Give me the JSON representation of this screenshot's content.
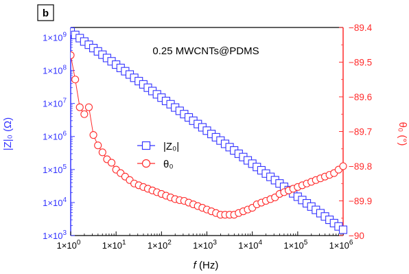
{
  "panel_label": "b",
  "colors": {
    "left": "#3333ff",
    "right": "#ff2a2a",
    "axes": "#000000"
  },
  "chart_data": {
    "type": "scatter",
    "title": "0.25 MWCNTs@PDMS",
    "xscale": "log",
    "xlim": [
      1,
      1000000
    ],
    "xlabel": {
      "italic": "f",
      "rest": " (Hz)"
    },
    "xticks": [
      {
        "v": 1,
        "m": "1×10",
        "e": "0"
      },
      {
        "v": 10,
        "m": "1×10",
        "e": "1"
      },
      {
        "v": 100,
        "m": "1×10",
        "e": "2"
      },
      {
        "v": 1000,
        "m": "1×10",
        "e": "3"
      },
      {
        "v": 10000,
        "m": "1×10",
        "e": "4"
      },
      {
        "v": 100000,
        "m": "1×10",
        "e": "5"
      },
      {
        "v": 1000000,
        "m": "1×10",
        "e": "6"
      }
    ],
    "y_left": {
      "label": "|Z|₀ (Ω)",
      "scale": "log",
      "lim": [
        1000,
        2000000000
      ],
      "ticks": [
        {
          "v": 1000,
          "m": "1×10",
          "e": "3"
        },
        {
          "v": 10000,
          "m": "1×10",
          "e": "4"
        },
        {
          "v": 100000,
          "m": "1×10",
          "e": "5"
        },
        {
          "v": 1000000,
          "m": "1×10",
          "e": "6"
        },
        {
          "v": 10000000,
          "m": "1×10",
          "e": "7"
        },
        {
          "v": 100000000,
          "m": "1×10",
          "e": "8"
        },
        {
          "v": 1000000000,
          "m": "1×10",
          "e": "9"
        }
      ]
    },
    "y_right": {
      "label": "θ₀ (°)",
      "scale": "linear",
      "lim": [
        -90,
        -89.4
      ],
      "ticks": [
        {
          "v": -89.4,
          "t": "−89.4"
        },
        {
          "v": -89.5,
          "t": "−89.5"
        },
        {
          "v": -89.6,
          "t": "−89.6"
        },
        {
          "v": -89.7,
          "t": "−89.7"
        },
        {
          "v": -89.8,
          "t": "−89.8"
        },
        {
          "v": -89.9,
          "t": "−89.9"
        },
        {
          "v": -90.0,
          "t": "−90"
        }
      ]
    },
    "legend_position": "center-left",
    "series": [
      {
        "name": "|Z₀|",
        "axis": "left",
        "marker": "square",
        "points": [
          [
            1.0,
            1500000000
          ],
          [
            1.259,
            1190000000
          ],
          [
            1.585,
            950000000
          ],
          [
            1.995,
            750000000
          ],
          [
            2.512,
            600000000
          ],
          [
            3.162,
            475000000
          ],
          [
            3.981,
            378000000
          ],
          [
            5.012,
            300000000
          ],
          [
            6.31,
            238000000
          ],
          [
            7.943,
            189000000
          ],
          [
            10.0,
            150000000
          ],
          [
            12.59,
            119000000
          ],
          [
            15.85,
            94700000
          ],
          [
            19.95,
            75300000
          ],
          [
            25.12,
            59800000
          ],
          [
            31.62,
            47500000
          ],
          [
            39.81,
            37800000
          ],
          [
            50.12,
            30000000
          ],
          [
            63.1,
            23800000
          ],
          [
            79.43,
            18900000
          ],
          [
            100.0,
            15000000
          ],
          [
            125.9,
            11900000
          ],
          [
            158.5,
            9470000
          ],
          [
            199.5,
            7530000
          ],
          [
            251.2,
            5980000
          ],
          [
            316.2,
            4750000
          ],
          [
            398.1,
            3780000
          ],
          [
            501.2,
            3000000
          ],
          [
            631.0,
            2380000
          ],
          [
            794.3,
            1890000
          ],
          [
            1000.0,
            1500000
          ],
          [
            1259,
            1190000
          ],
          [
            1585,
            947000
          ],
          [
            1995,
            753000
          ],
          [
            2512,
            598000
          ],
          [
            3162,
            475000
          ],
          [
            3981,
            378000
          ],
          [
            5012,
            300000
          ],
          [
            6310,
            238000
          ],
          [
            7943,
            189000
          ],
          [
            10000,
            150000
          ],
          [
            12590,
            119000
          ],
          [
            15850,
            94700
          ],
          [
            19950,
            75300
          ],
          [
            25120,
            59800
          ],
          [
            31620,
            47500
          ],
          [
            39810,
            37800
          ],
          [
            50120,
            30000
          ],
          [
            63100,
            23800
          ],
          [
            79430,
            18900
          ],
          [
            100000,
            15000
          ],
          [
            125900,
            11900
          ],
          [
            158500,
            9470
          ],
          [
            199500,
            7530
          ],
          [
            251200,
            5980
          ],
          [
            316200,
            4750
          ],
          [
            398100,
            3780
          ],
          [
            501200,
            3000
          ],
          [
            631000,
            2380
          ],
          [
            794300,
            1890
          ],
          [
            1000000,
            1500
          ]
        ]
      },
      {
        "name": "θ₀",
        "axis": "right",
        "marker": "circle",
        "points": [
          [
            1.0,
            -89.48
          ],
          [
            1.259,
            -89.55
          ],
          [
            1.585,
            -89.63
          ],
          [
            1.995,
            -89.65
          ],
          [
            2.512,
            -89.63
          ],
          [
            3.162,
            -89.71
          ],
          [
            3.981,
            -89.74
          ],
          [
            5.012,
            -89.76
          ],
          [
            6.31,
            -89.78
          ],
          [
            7.943,
            -89.79
          ],
          [
            10.0,
            -89.81
          ],
          [
            12.59,
            -89.82
          ],
          [
            15.85,
            -89.83
          ],
          [
            19.95,
            -89.84
          ],
          [
            25.12,
            -89.85
          ],
          [
            31.62,
            -89.855
          ],
          [
            39.81,
            -89.86
          ],
          [
            50.12,
            -89.865
          ],
          [
            63.1,
            -89.87
          ],
          [
            79.43,
            -89.875
          ],
          [
            100.0,
            -89.88
          ],
          [
            125.9,
            -89.885
          ],
          [
            158.5,
            -89.89
          ],
          [
            199.5,
            -89.895
          ],
          [
            251.2,
            -89.898
          ],
          [
            316.2,
            -89.9
          ],
          [
            398.1,
            -89.905
          ],
          [
            501.2,
            -89.91
          ],
          [
            631.0,
            -89.915
          ],
          [
            794.3,
            -89.92
          ],
          [
            1000.0,
            -89.925
          ],
          [
            1259,
            -89.93
          ],
          [
            1585,
            -89.935
          ],
          [
            1995,
            -89.94
          ],
          [
            2512,
            -89.94
          ],
          [
            3162,
            -89.94
          ],
          [
            3981,
            -89.94
          ],
          [
            5012,
            -89.935
          ],
          [
            6310,
            -89.93
          ],
          [
            7943,
            -89.925
          ],
          [
            10000,
            -89.92
          ],
          [
            12590,
            -89.91
          ],
          [
            15850,
            -89.905
          ],
          [
            19950,
            -89.9
          ],
          [
            25120,
            -89.895
          ],
          [
            31620,
            -89.89
          ],
          [
            39810,
            -89.88
          ],
          [
            50120,
            -89.875
          ],
          [
            63100,
            -89.87
          ],
          [
            79430,
            -89.865
          ],
          [
            100000,
            -89.86
          ],
          [
            125900,
            -89.855
          ],
          [
            158500,
            -89.85
          ],
          [
            199500,
            -89.845
          ],
          [
            251200,
            -89.84
          ],
          [
            316200,
            -89.835
          ],
          [
            398100,
            -89.83
          ],
          [
            501200,
            -89.825
          ],
          [
            631000,
            -89.82
          ],
          [
            794300,
            -89.81
          ],
          [
            1000000,
            -89.8
          ]
        ]
      }
    ]
  }
}
